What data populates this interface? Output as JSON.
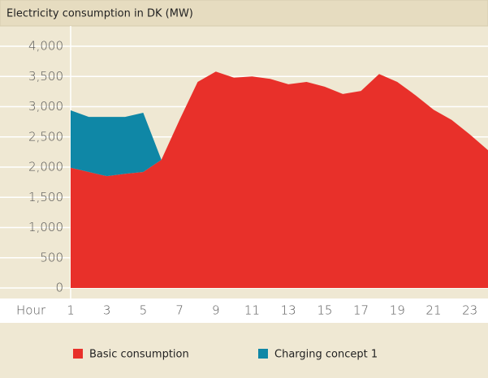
{
  "chart_data": {
    "type": "stacked_area",
    "title": "Electricity consumption in DK (MW)",
    "x_label": "Hour",
    "x": [
      1,
      2,
      3,
      4,
      5,
      6,
      7,
      8,
      9,
      10,
      11,
      12,
      13,
      14,
      15,
      16,
      17,
      18,
      19,
      20,
      21,
      22,
      23,
      24
    ],
    "xlim": [
      1,
      24
    ],
    "xticks": [
      1,
      3,
      5,
      7,
      9,
      11,
      13,
      15,
      17,
      19,
      21,
      23
    ],
    "ylim": [
      0,
      4000
    ],
    "yticks": [
      0,
      500,
      {
        "value": 1000,
        "label": "1,000"
      },
      {
        "value": 1500,
        "label": "1,500"
      },
      {
        "value": 2000,
        "label": "2,000"
      },
      {
        "value": 2500,
        "label": "2,500"
      },
      {
        "value": 3000,
        "label": "3,000"
      },
      {
        "value": 3500,
        "label": "3,500"
      },
      {
        "value": 4000,
        "label": "4,000"
      }
    ],
    "grid": true,
    "legend": "bottom",
    "series": [
      {
        "name": "Basic consumption",
        "color": "#e8302a",
        "values": [
          1990,
          1920,
          1850,
          1890,
          1920,
          2120,
          2780,
          3410,
          3580,
          3480,
          3500,
          3460,
          3370,
          3410,
          3330,
          3210,
          3260,
          3540,
          3410,
          3190,
          2950,
          2780,
          2540,
          2280
        ]
      },
      {
        "name": "Charging concept 1",
        "color": "#0f87a6",
        "values": [
          950,
          910,
          980,
          940,
          980,
          0,
          0,
          0,
          0,
          0,
          0,
          0,
          0,
          0,
          0,
          0,
          0,
          0,
          0,
          0,
          0,
          0,
          0,
          0
        ]
      }
    ]
  }
}
